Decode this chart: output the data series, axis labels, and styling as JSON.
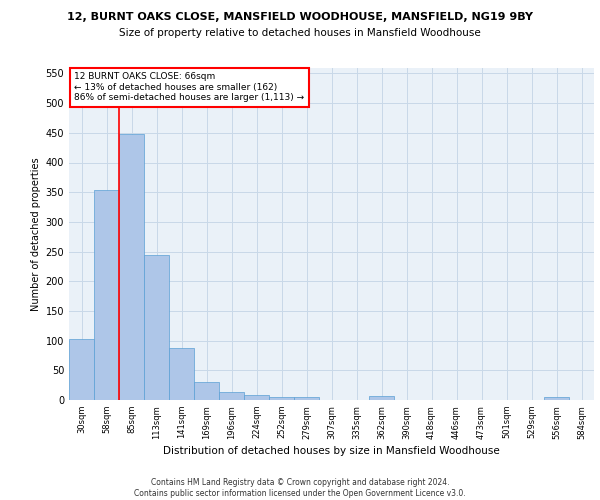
{
  "title_line1": "12, BURNT OAKS CLOSE, MANSFIELD WOODHOUSE, MANSFIELD, NG19 9BY",
  "title_line2": "Size of property relative to detached houses in Mansfield Woodhouse",
  "xlabel": "Distribution of detached houses by size in Mansfield Woodhouse",
  "ylabel": "Number of detached properties",
  "footnote": "Contains HM Land Registry data © Crown copyright and database right 2024.\nContains public sector information licensed under the Open Government Licence v3.0.",
  "bin_labels": [
    "30sqm",
    "58sqm",
    "85sqm",
    "113sqm",
    "141sqm",
    "169sqm",
    "196sqm",
    "224sqm",
    "252sqm",
    "279sqm",
    "307sqm",
    "335sqm",
    "362sqm",
    "390sqm",
    "418sqm",
    "446sqm",
    "473sqm",
    "501sqm",
    "529sqm",
    "556sqm",
    "584sqm"
  ],
  "bar_values": [
    103,
    354,
    448,
    245,
    87,
    30,
    13,
    9,
    5,
    5,
    0,
    0,
    6,
    0,
    0,
    0,
    0,
    0,
    0,
    5,
    0
  ],
  "bar_color": "#aec6e8",
  "bar_edge_color": "#5a9fd4",
  "grid_color": "#c8d8e8",
  "background_color": "#eaf1f8",
  "vline_x": 1.5,
  "vline_color": "red",
  "annotation_text": "12 BURNT OAKS CLOSE: 66sqm\n← 13% of detached houses are smaller (162)\n86% of semi-detached houses are larger (1,113) →",
  "annotation_box_color": "white",
  "annotation_box_edge_color": "red",
  "ylim": [
    0,
    560
  ],
  "yticks": [
    0,
    50,
    100,
    150,
    200,
    250,
    300,
    350,
    400,
    450,
    500,
    550
  ]
}
